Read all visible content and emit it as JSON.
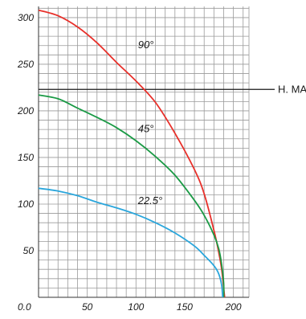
{
  "chart_data": {
    "type": "line",
    "title": "",
    "xlabel": "",
    "ylabel": "",
    "xlim": [
      0,
      216
    ],
    "ylim": [
      0,
      312
    ],
    "grid": true,
    "x_minor_step": 10,
    "y_minor_step": 10,
    "x_ticks": [
      {
        "value": 0,
        "label": "0.0"
      },
      {
        "value": 50,
        "label": "50"
      },
      {
        "value": 100,
        "label": "100"
      },
      {
        "value": 150,
        "label": "150"
      },
      {
        "value": 200,
        "label": "200"
      }
    ],
    "y_ticks": [
      {
        "value": 50,
        "label": "50"
      },
      {
        "value": 100,
        "label": "100"
      },
      {
        "value": 150,
        "label": "150"
      },
      {
        "value": 200,
        "label": "200"
      },
      {
        "value": 250,
        "label": "250"
      },
      {
        "value": 300,
        "label": "300"
      }
    ],
    "reference_line": {
      "y": 223,
      "label": "H. MAX",
      "color": "#1a1a1a"
    },
    "series": [
      {
        "name": "90°",
        "color": "#e8302a",
        "label_at": [
          102,
          267
        ],
        "points": [
          [
            0,
            308
          ],
          [
            20,
            302
          ],
          [
            40,
            290
          ],
          [
            60,
            273
          ],
          [
            80,
            252
          ],
          [
            100,
            232
          ],
          [
            120,
            209
          ],
          [
            140,
            176
          ],
          [
            160,
            137
          ],
          [
            170,
            111
          ],
          [
            180,
            72
          ],
          [
            185,
            48
          ],
          [
            188,
            30
          ],
          [
            190,
            10
          ],
          [
            191,
            0
          ]
        ]
      },
      {
        "name": "45°",
        "color": "#1a9a45",
        "label_at": [
          102,
          177
        ],
        "points": [
          [
            0,
            217
          ],
          [
            20,
            213
          ],
          [
            40,
            203
          ],
          [
            60,
            193
          ],
          [
            80,
            182
          ],
          [
            100,
            168
          ],
          [
            120,
            151
          ],
          [
            140,
            131
          ],
          [
            160,
            104
          ],
          [
            170,
            88
          ],
          [
            180,
            67
          ],
          [
            185,
            52
          ],
          [
            188,
            35
          ],
          [
            190,
            15
          ],
          [
            190,
            0
          ]
        ]
      },
      {
        "name": "22.5°",
        "color": "#2aa6dc",
        "label_at": [
          102,
          100
        ],
        "points": [
          [
            0,
            117
          ],
          [
            20,
            114
          ],
          [
            40,
            109
          ],
          [
            60,
            102
          ],
          [
            80,
            96
          ],
          [
            100,
            89
          ],
          [
            120,
            80
          ],
          [
            140,
            69
          ],
          [
            160,
            55
          ],
          [
            170,
            45
          ],
          [
            180,
            34
          ],
          [
            185,
            25
          ],
          [
            188,
            13
          ],
          [
            189,
            0
          ]
        ]
      }
    ]
  }
}
